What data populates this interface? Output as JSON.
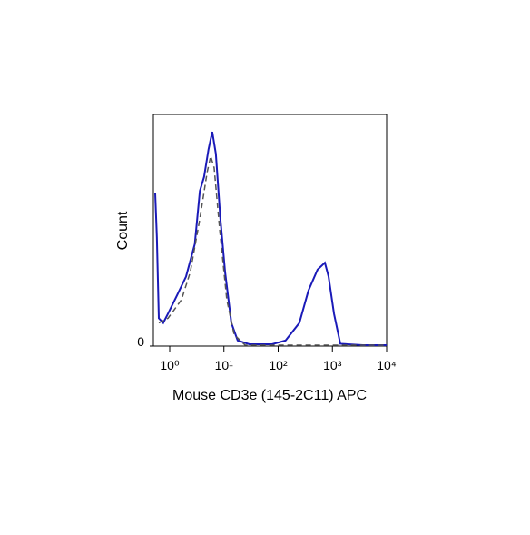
{
  "chart_data": {
    "type": "line",
    "x_label": "Mouse CD3e (145-2C11) APC",
    "y_label": "Count",
    "x_log": true,
    "xlim": [
      0.5,
      10000
    ],
    "xticks": [
      {
        "value": 1,
        "label": "10⁰"
      },
      {
        "value": 10,
        "label": "10¹"
      },
      {
        "value": 100,
        "label": "10²"
      },
      {
        "value": 1000,
        "label": "10³"
      },
      {
        "value": 10000,
        "label": "10⁴"
      }
    ],
    "ylim": [
      0,
      100
    ],
    "yticks": [
      0
    ],
    "series": [
      {
        "color": "#1a1ab8",
        "dash": false,
        "x": [
          0.54,
          0.58,
          0.63,
          0.76,
          0.93,
          1.37,
          2.0,
          2.9,
          3.6,
          4.3,
          5.2,
          6.1,
          7.1,
          8.6,
          10.5,
          13.7,
          17.9,
          29.5,
          77,
          137,
          246,
          362,
          532,
          727,
          850,
          1070,
          1400,
          3630,
          10000
        ],
        "values": [
          66,
          47,
          12,
          10,
          14,
          22,
          30,
          44,
          67,
          73,
          85,
          92.5,
          83,
          55,
          32,
          10,
          2.4,
          0.8,
          0.8,
          2.4,
          10,
          24,
          33,
          36,
          30,
          14,
          1,
          0.4,
          0.4
        ]
      },
      {
        "color": "#555555",
        "dash": true,
        "x": [
          0.63,
          0.93,
          1.65,
          2.4,
          3.6,
          4.9,
          5.7,
          6.6,
          8.3,
          11.3,
          15.4,
          24.6,
          532,
          10000
        ],
        "values": [
          10,
          12,
          20,
          32,
          55,
          75,
          82,
          77,
          51,
          20,
          5,
          0.4,
          0.4,
          0.4
        ]
      }
    ]
  }
}
